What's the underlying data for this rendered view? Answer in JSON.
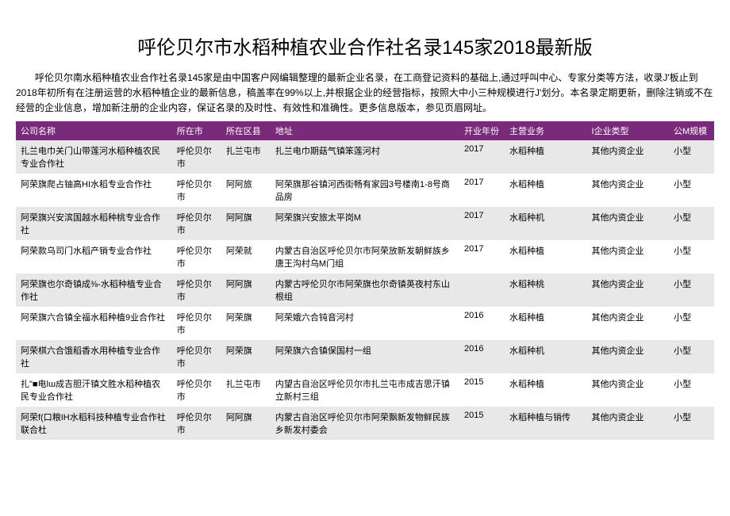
{
  "title": "呼伦贝尔市水稻种植农业合作社名录145家2018最新版",
  "intro": "呼伦贝尔南水稻种植农业合作社名录145家是由中国客户网编辑整理的最新企业名录，在工商登记资料的基础上,通过呼叫中心、专家分类等方法，收录J'板止到2018年初所有在注册运营的水稻种植企业的最新信息，稿盖率在99%以上,并根据企业的经营指标，按照大中小三种规模进行J'划分。本名录定期更新，删除注销或不在经营的企业信息，增加新注册的企业内容，保证名录的及时性、有效性和准确性。更多信息版本，参见页眉网址。",
  "columns": [
    "公司名称",
    "所在市",
    "所在区县",
    "地址",
    "开业年份",
    "主营业务",
    "I企业类型",
    "公M规模"
  ],
  "rows": [
    [
      "扎兰电巾关门山带莲河水稻种植农民专业合作社",
      "呼伦贝尔市",
      "扎兰屯市",
      "扎兰电巾期菇气镇笨莲河村",
      "2017",
      "水稻种植",
      "其他内资企业",
      "小型"
    ],
    [
      "阿荣旗爬占铀高HI水稻专业合作社",
      "呼伦贝尔市",
      "阿阿旅",
      "阿荣旗那谷镇河西街畅有家园3号楼南1-8号商品房",
      "2017",
      "水稻种植",
      "其他内资企业",
      "小型"
    ],
    [
      "阿荣旗兴安滨国越水稻种桃专业合作社",
      "呼伦贝尔市",
      "阿阿旗",
      "阿荣旗兴安旅太平岗M",
      "2017",
      "水稻种机",
      "其他内资企业",
      "小型"
    ],
    [
      "阿荣款乌司门水稻产销专业合作社",
      "呼伦贝尔市",
      "阿荣就",
      "内蒙古自治区呼伦贝尔市阿荣放新发朝鲜族乡唐王沟村乌M门组",
      "2017",
      "水稻种植",
      "其他内资企业",
      "小型"
    ],
    [
      "阿荣旗也尔奇镇成⅜-水稻种植专业合作社",
      "呼伦贝尔市",
      "阿阿旗",
      "内蒙古呼伦贝尔市阿荣旗也尔奇镇英夜村东山根组",
      "",
      "水稻种桃",
      "其他内资企业",
      "小型"
    ],
    [
      "阿荣旗六合镇全福水稻种植9业合作社",
      "呼伦贝尔市",
      "阿荣旗",
      "阿荣娥六合钝音河村",
      "2016",
      "水稻种植",
      "其他内资企业",
      "小型"
    ],
    [
      "阿荣棋六合饿稻香水用种植专业合作社",
      "呼伦贝尔市",
      "阿荣旗",
      "阿荣旗六合镇保国村一组",
      "2016",
      "水稻种机",
      "其他内资企业",
      "小型"
    ],
    [
      "扎\"■电lɯ成吉胆汗镇文胜水稻种植农民专业合作社",
      "呼伦贝尔市",
      "扎兰屯市",
      "内望古自治区呼伦贝尔市扎兰屯市成吉思汗镇立新村三组",
      "2015",
      "水稻种植",
      "其他内资企业",
      "小型"
    ],
    [
      "阿荣f(口粮IH水稻科技种植专业合作社联合杜",
      "呼伦贝尔市",
      "阿阿旗",
      "内蒙古自治区呼伦贝尔市阿荣飘新发物鲜民族乡新发村委会",
      "2015",
      "水稻种植与销传",
      "其他内资企业",
      "小型"
    ]
  ],
  "header_bg": "#7a2a7a",
  "header_fg": "#ffffff",
  "row_odd_bg": "#e8e8e8",
  "row_even_bg": "#ffffff",
  "title_fontsize": 24,
  "body_fontsize": 11
}
